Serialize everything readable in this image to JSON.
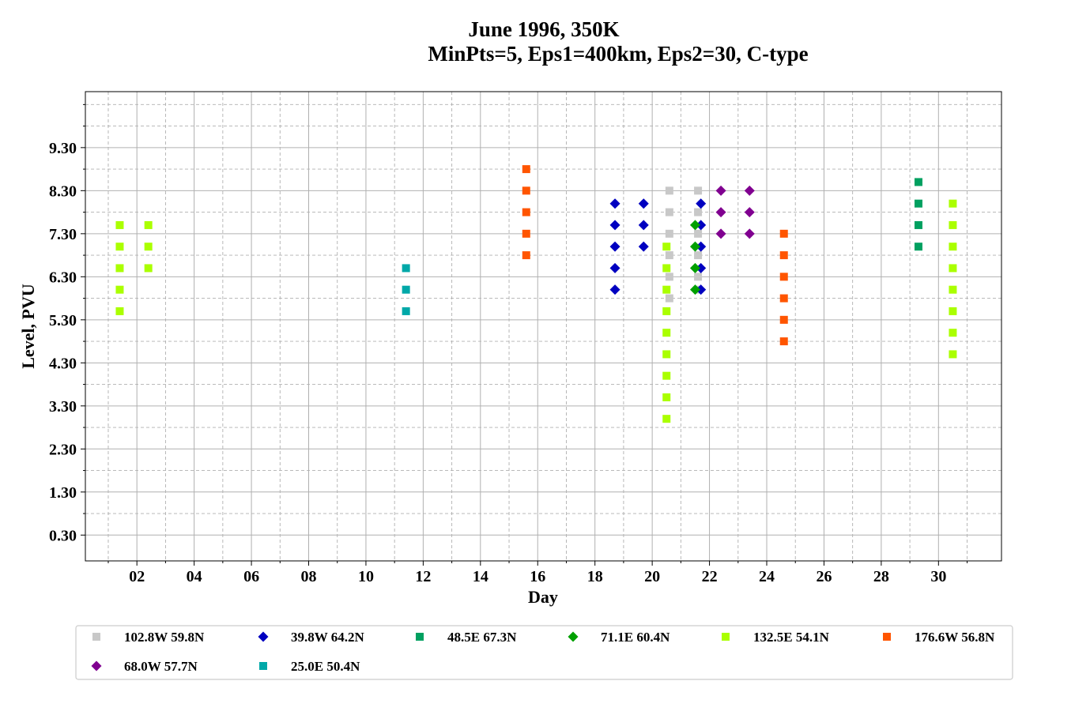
{
  "chart_data": {
    "type": "scatter",
    "title": "June 1996, 350K",
    "subtitle": "MinPts=5, Eps1=400km, Eps2=30, C-type",
    "xlabel": "Day",
    "ylabel": "Level, PVU",
    "xlim": [
      0.2,
      32.2
    ],
    "ylim": [
      -0.3,
      10.6
    ],
    "x_ticks": [
      2,
      4,
      6,
      8,
      10,
      12,
      14,
      16,
      18,
      20,
      22,
      24,
      26,
      28,
      30
    ],
    "x_tick_labels": [
      "02",
      "04",
      "06",
      "08",
      "10",
      "12",
      "14",
      "16",
      "18",
      "20",
      "22",
      "24",
      "26",
      "28",
      "30"
    ],
    "x_minor_ticks": [
      1,
      3,
      5,
      7,
      9,
      11,
      13,
      15,
      17,
      19,
      21,
      23,
      25,
      27,
      29,
      31
    ],
    "y_ticks": [
      0.3,
      1.3,
      2.3,
      3.3,
      4.3,
      5.3,
      6.3,
      7.3,
      8.3,
      9.3
    ],
    "y_tick_labels": [
      "0.30",
      "1.30",
      "2.30",
      "3.30",
      "4.30",
      "5.30",
      "6.30",
      "7.30",
      "8.30",
      "9.30"
    ],
    "y_minor_ticks": [
      0.8,
      1.8,
      2.8,
      3.8,
      4.8,
      5.8,
      6.8,
      7.8,
      8.8,
      9.8,
      10.3
    ],
    "grid": true,
    "legend_position": "bottom",
    "series": [
      {
        "name": "102.8W 59.8N",
        "marker": "square",
        "color": "#c8c8c8",
        "points": [
          [
            20.6,
            8.3
          ],
          [
            20.6,
            7.8
          ],
          [
            20.6,
            7.3
          ],
          [
            20.6,
            6.8
          ],
          [
            20.6,
            6.3
          ],
          [
            20.6,
            5.8
          ],
          [
            21.6,
            8.3
          ],
          [
            21.6,
            7.8
          ],
          [
            21.6,
            7.3
          ],
          [
            21.6,
            6.8
          ],
          [
            21.6,
            6.3
          ],
          [
            21.6,
            6.0
          ]
        ]
      },
      {
        "name": "39.8W 64.2N",
        "marker": "diamond",
        "color": "#0000c0",
        "points": [
          [
            18.7,
            8.0
          ],
          [
            18.7,
            7.5
          ],
          [
            18.7,
            7.0
          ],
          [
            18.7,
            6.5
          ],
          [
            18.7,
            6.0
          ],
          [
            19.7,
            8.0
          ],
          [
            19.7,
            7.5
          ],
          [
            19.7,
            7.0
          ],
          [
            21.7,
            8.0
          ],
          [
            21.7,
            7.5
          ],
          [
            21.7,
            7.0
          ],
          [
            21.7,
            6.5
          ],
          [
            21.7,
            6.0
          ]
        ]
      },
      {
        "name": "48.5E 67.3N",
        "marker": "square",
        "color": "#00a060",
        "points": [
          [
            29.3,
            8.5
          ],
          [
            29.3,
            8.0
          ],
          [
            29.3,
            7.5
          ],
          [
            29.3,
            7.0
          ]
        ]
      },
      {
        "name": "71.1E 60.4N",
        "marker": "diamond",
        "color": "#00a000",
        "points": [
          [
            21.5,
            7.5
          ],
          [
            21.5,
            7.0
          ],
          [
            21.5,
            6.5
          ],
          [
            21.5,
            6.0
          ]
        ]
      },
      {
        "name": "132.5E 54.1N",
        "marker": "square",
        "color": "#aaff00",
        "points": [
          [
            1.4,
            7.5
          ],
          [
            1.4,
            7.0
          ],
          [
            1.4,
            6.5
          ],
          [
            1.4,
            6.0
          ],
          [
            1.4,
            5.5
          ],
          [
            2.4,
            7.5
          ],
          [
            2.4,
            7.0
          ],
          [
            2.4,
            6.5
          ],
          [
            20.5,
            7.0
          ],
          [
            20.5,
            6.5
          ],
          [
            20.5,
            6.0
          ],
          [
            20.5,
            5.5
          ],
          [
            20.5,
            5.0
          ],
          [
            20.5,
            4.5
          ],
          [
            20.5,
            4.0
          ],
          [
            20.5,
            3.5
          ],
          [
            20.5,
            3.0
          ],
          [
            30.5,
            8.0
          ],
          [
            30.5,
            7.5
          ],
          [
            30.5,
            7.0
          ],
          [
            30.5,
            6.5
          ],
          [
            30.5,
            6.0
          ],
          [
            30.5,
            5.5
          ],
          [
            30.5,
            5.0
          ],
          [
            30.5,
            4.5
          ]
        ]
      },
      {
        "name": "176.6W 56.8N",
        "marker": "square",
        "color": "#ff5500",
        "points": [
          [
            15.6,
            8.8
          ],
          [
            15.6,
            8.3
          ],
          [
            15.6,
            7.8
          ],
          [
            15.6,
            7.3
          ],
          [
            15.6,
            6.8
          ],
          [
            24.6,
            7.3
          ],
          [
            24.6,
            6.8
          ],
          [
            24.6,
            6.3
          ],
          [
            24.6,
            5.8
          ],
          [
            24.6,
            5.3
          ],
          [
            24.6,
            4.8
          ]
        ]
      },
      {
        "name": "68.0W 57.7N",
        "marker": "diamond",
        "color": "#800090",
        "points": [
          [
            22.4,
            8.3
          ],
          [
            22.4,
            7.8
          ],
          [
            22.4,
            7.3
          ],
          [
            23.4,
            8.3
          ],
          [
            23.4,
            7.8
          ],
          [
            23.4,
            7.3
          ]
        ]
      },
      {
        "name": "25.0E 50.4N",
        "marker": "square",
        "color": "#00a8a8",
        "points": [
          [
            11.4,
            6.5
          ],
          [
            11.4,
            6.0
          ],
          [
            11.4,
            5.5
          ]
        ]
      }
    ]
  }
}
